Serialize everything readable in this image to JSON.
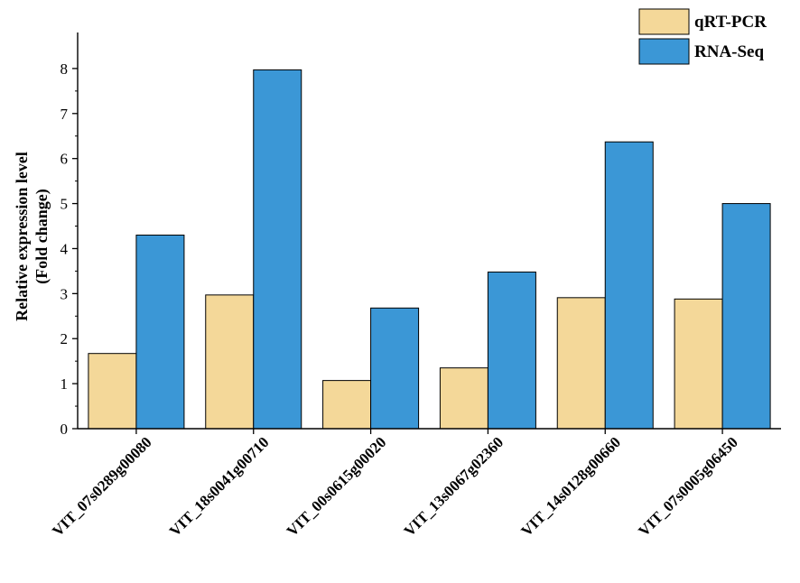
{
  "chart_data": {
    "type": "bar",
    "categories": [
      "VIT_07s0289g00080",
      "VIT_18s0041g00710",
      "VIT_00s0615g00020",
      "VIT_13s0067g02360",
      "VIT_14s0128g00660",
      "VIT_07s0005g06450"
    ],
    "series": [
      {
        "name": "qRT-PCR",
        "values": [
          1.67,
          2.97,
          1.07,
          1.35,
          2.91,
          2.88
        ],
        "color": "#f4d899"
      },
      {
        "name": "RNA-Seq",
        "values": [
          4.3,
          7.97,
          2.68,
          3.48,
          6.37,
          5.0
        ],
        "color": "#3b97d6"
      }
    ],
    "ylabel_line1": "Relative expression level",
    "ylabel_line2": "(Fold change)",
    "xlabel": "",
    "title": "",
    "ylim": [
      0,
      8.8
    ],
    "yticks": [
      "0",
      "1",
      "2",
      "3",
      "4",
      "5",
      "6",
      "7",
      "8"
    ],
    "legend_position": "top-right",
    "grid": false
  }
}
